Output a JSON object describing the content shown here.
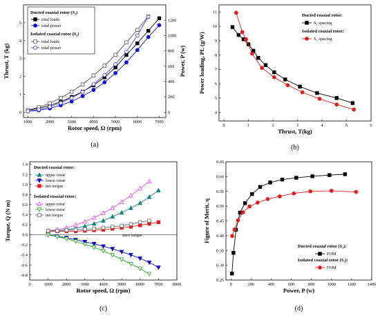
{
  "chart_data": [
    {
      "id": "a",
      "type": "line",
      "caption": "(a)",
      "xlabel": "Rotor speed, Ω (rpm)",
      "ylabel": "Thrust, T (kg)",
      "ylabel_right": "Power, P (w)",
      "xlim": [
        800,
        7300
      ],
      "ylim": [
        -0.3,
        6.0
      ],
      "ylim_right": [
        -70,
        1400
      ],
      "xticks": [
        1000,
        2000,
        3000,
        4000,
        5000,
        6000,
        7000
      ],
      "yticks": [
        0,
        1,
        2,
        3,
        4,
        5
      ],
      "yticks_right": [
        0,
        200,
        400,
        600,
        800,
        1000,
        1200
      ],
      "legend_groups": [
        "Ducted coaxial rotor (S₁)",
        "Isolated coaxial rotor (S₁)"
      ],
      "x": [
        1000,
        1500,
        2000,
        2500,
        3000,
        3500,
        4000,
        4500,
        5000,
        5500,
        6000,
        6500,
        7000
      ],
      "series": [
        {
          "name": "total loads",
          "group": 0,
          "axis": "left",
          "color": "#000000",
          "marker": "square",
          "filled": true,
          "x": [
            1000,
            1500,
            2000,
            2500,
            3000,
            3500,
            4000,
            4500,
            5000,
            5500,
            6000,
            6500,
            7000
          ],
          "values": [
            0.1,
            0.22,
            0.38,
            0.58,
            0.85,
            1.15,
            1.5,
            1.95,
            2.5,
            3.2,
            3.85,
            4.55,
            5.25
          ]
        },
        {
          "name": "total power",
          "group": 0,
          "axis": "right",
          "color": "#1010d0",
          "marker": "circle",
          "filled": true,
          "x": [
            1000,
            1500,
            2000,
            2500,
            3000,
            3500,
            4000,
            4500,
            5000,
            5500,
            6000,
            6500,
            7000
          ],
          "values": [
            10,
            25,
            50,
            90,
            140,
            210,
            290,
            390,
            510,
            650,
            810,
            980,
            1135
          ]
        },
        {
          "name": "total loads",
          "group": 1,
          "axis": "left",
          "color": "#555555",
          "marker": "square",
          "filled": false,
          "x": [
            1000,
            1500,
            2000,
            2500,
            3000,
            3500,
            4000,
            4500,
            5000,
            5500,
            6000,
            6500
          ],
          "values": [
            0.12,
            0.28,
            0.5,
            0.8,
            1.15,
            1.55,
            2.05,
            2.6,
            3.2,
            3.9,
            4.6,
            5.35
          ]
        },
        {
          "name": "total power",
          "group": 1,
          "axis": "right",
          "color": "#4444ee",
          "marker": "circle",
          "filled": false,
          "x": [
            1000,
            1500,
            2000,
            2500,
            3000,
            3500,
            4000,
            4500,
            5000,
            5500,
            6000,
            6500
          ],
          "values": [
            12,
            35,
            70,
            120,
            185,
            265,
            365,
            485,
            625,
            790,
            1000,
            1245
          ]
        }
      ]
    },
    {
      "id": "b",
      "type": "line",
      "caption": "(b)",
      "xlabel": "Thrust, T(kg)",
      "ylabel": "Power loading, PL (g/W)",
      "xlim": [
        -0.2,
        6.0
      ],
      "ylim": [
        3.4,
        11.5
      ],
      "xticks": [
        0,
        1,
        2,
        3,
        4,
        5,
        6
      ],
      "yticks": [
        4,
        5,
        6,
        7,
        8,
        9,
        10,
        11
      ],
      "legend_groups": [
        "Ducted coaxial rotor:",
        "Isolated coaxial rotor:"
      ],
      "series": [
        {
          "name": "S₁ spacing",
          "group": 0,
          "color": "#000000",
          "marker": "square",
          "filled": true,
          "x": [
            0.35,
            0.6,
            0.8,
            1.0,
            1.2,
            1.4,
            1.7,
            2.05,
            2.5,
            3.1,
            3.8,
            4.6,
            5.25
          ],
          "values": [
            9.95,
            9.4,
            9.1,
            8.75,
            8.3,
            7.8,
            7.3,
            6.8,
            6.3,
            5.8,
            5.35,
            5.0,
            4.65
          ]
        },
        {
          "name": "S₁ spacing",
          "group": 1,
          "color": "#e02020",
          "marker": "circle",
          "filled": true,
          "x": [
            0.5,
            0.75,
            0.9,
            1.15,
            1.55,
            2.05,
            2.6,
            3.2,
            3.9,
            4.6,
            5.3
          ],
          "values": [
            10.95,
            9.6,
            9.1,
            8.1,
            7.1,
            6.45,
            5.9,
            5.4,
            4.95,
            4.55,
            4.2
          ]
        }
      ]
    },
    {
      "id": "c",
      "type": "line",
      "caption": "(c)",
      "xlabel": "Rotor speed, Ω (rpm)",
      "ylabel": "Torque, Q (N m)",
      "xlim": [
        0,
        8000
      ],
      "ylim": [
        -0.9,
        1.45
      ],
      "xticks": [
        0,
        1000,
        2000,
        3000,
        4000,
        5000,
        6000,
        7000,
        8000
      ],
      "yticks": [
        -0.8,
        -0.6,
        -0.4,
        -0.2,
        0.0,
        0.2,
        0.4,
        0.6,
        0.8,
        1.0,
        1.2,
        1.4
      ],
      "annotation": "zero torque",
      "legend_groups": [
        "Ducted coaxial rotor:",
        "Isolated coaxial rotor:"
      ],
      "series": [
        {
          "name": "upper rotor",
          "group": 0,
          "color": "#108080",
          "marker": "triangle-up",
          "filled": true,
          "x": [
            1000,
            1500,
            2000,
            2500,
            3000,
            3500,
            4000,
            4500,
            5000,
            5500,
            6000,
            6500,
            7000
          ],
          "values": [
            0.08,
            0.08,
            0.1,
            0.13,
            0.17,
            0.22,
            0.28,
            0.36,
            0.44,
            0.53,
            0.63,
            0.75,
            0.88
          ]
        },
        {
          "name": "lower rotor",
          "group": 0,
          "color": "#1010c0",
          "marker": "triangle-down",
          "filled": true,
          "x": [
            1000,
            1500,
            2000,
            2500,
            3000,
            3500,
            4000,
            4500,
            5000,
            5500,
            6000,
            6500,
            7000
          ],
          "values": [
            0.0,
            -0.03,
            -0.06,
            -0.1,
            -0.14,
            -0.18,
            -0.23,
            -0.28,
            -0.34,
            -0.4,
            -0.47,
            -0.55,
            -0.65
          ]
        },
        {
          "name": "net torque",
          "group": 0,
          "color": "#e02020",
          "marker": "square",
          "filled": true,
          "x": [
            1000,
            1500,
            2000,
            2500,
            3000,
            3500,
            4000,
            4500,
            5000,
            5500,
            6000,
            6500,
            7000
          ],
          "values": [
            0.07,
            0.07,
            0.07,
            0.07,
            0.08,
            0.09,
            0.1,
            0.12,
            0.14,
            0.16,
            0.19,
            0.22,
            0.25
          ]
        },
        {
          "name": "upper rotor",
          "group": 1,
          "color": "#ee44ee",
          "marker": "triangle-up",
          "filled": false,
          "x": [
            1000,
            1500,
            2000,
            2500,
            3000,
            3500,
            4000,
            4500,
            5000,
            5500,
            6000,
            6500
          ],
          "values": [
            0.08,
            0.1,
            0.14,
            0.19,
            0.26,
            0.34,
            0.43,
            0.53,
            0.65,
            0.78,
            0.92,
            1.06
          ]
        },
        {
          "name": "lower rotor",
          "group": 1,
          "color": "#22aa22",
          "marker": "triangle-down",
          "filled": false,
          "x": [
            1000,
            1500,
            2000,
            2500,
            3000,
            3500,
            4000,
            4500,
            5000,
            5500,
            6000,
            6500
          ],
          "values": [
            0.0,
            -0.04,
            -0.08,
            -0.13,
            -0.19,
            -0.25,
            -0.32,
            -0.4,
            -0.49,
            -0.58,
            -0.67,
            -0.78
          ]
        },
        {
          "name": "net torque",
          "group": 1,
          "color": "#666666",
          "marker": "square",
          "filled": false,
          "x": [
            1000,
            1500,
            2000,
            2500,
            3000,
            3500,
            4000,
            4500,
            5000,
            5500,
            6000,
            6500
          ],
          "values": [
            0.08,
            0.08,
            0.09,
            0.1,
            0.11,
            0.12,
            0.14,
            0.16,
            0.18,
            0.21,
            0.25,
            0.28
          ]
        }
      ]
    },
    {
      "id": "d",
      "type": "line",
      "caption": "(d)",
      "xlabel": "Power, P (w)",
      "ylabel": "Figure of Merit, η",
      "xlim": [
        -50,
        1400
      ],
      "ylim": [
        0.25,
        0.65
      ],
      "xticks": [
        0,
        200,
        400,
        600,
        800,
        1000,
        1200,
        1400
      ],
      "yticks": [
        0.25,
        0.3,
        0.35,
        0.4,
        0.45,
        0.5,
        0.55,
        0.6,
        0.65
      ],
      "legend_groups": [
        "Ducted coaxial rotor (S₁):",
        "Isolated coaxial rotor (S₁):"
      ],
      "series": [
        {
          "name": "FOM",
          "group": 0,
          "color": "#000000",
          "marker": "square",
          "filled": true,
          "x": [
            10,
            25,
            50,
            90,
            140,
            210,
            290,
            390,
            510,
            650,
            810,
            980,
            1135
          ],
          "values": [
            0.272,
            0.342,
            0.42,
            0.478,
            0.51,
            0.541,
            0.565,
            0.58,
            0.59,
            0.596,
            0.601,
            0.605,
            0.608
          ]
        },
        {
          "name": "FOM",
          "group": 1,
          "color": "#e02020",
          "marker": "circle",
          "filled": true,
          "x": [
            12,
            35,
            70,
            120,
            185,
            265,
            365,
            485,
            625,
            790,
            1000,
            1245
          ],
          "values": [
            0.399,
            0.421,
            0.452,
            0.479,
            0.499,
            0.512,
            0.524,
            0.533,
            0.543,
            0.55,
            0.552,
            0.548
          ]
        }
      ]
    }
  ]
}
